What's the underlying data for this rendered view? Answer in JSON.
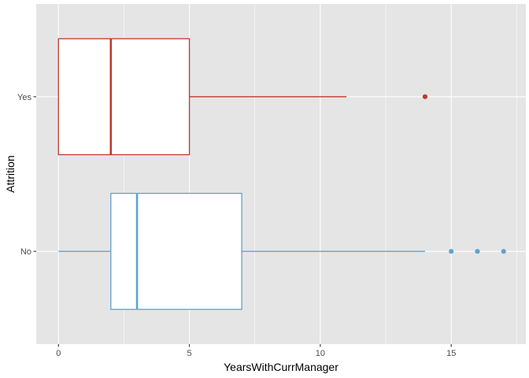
{
  "chart_data": {
    "type": "boxplot",
    "orientation": "horizontal",
    "title": "",
    "xlabel": "YearsWithCurrManager",
    "ylabel": "Attrition",
    "xlim": [
      -0.85,
      17.85
    ],
    "x_ticks": [
      0,
      5,
      10,
      15
    ],
    "x_tick_labels": [
      "0",
      "5",
      "10",
      "15"
    ],
    "categories": [
      "No",
      "Yes"
    ],
    "grid": true,
    "legend": "none",
    "panel_background": "#e5e5e5",
    "grid_color": "#ffffff",
    "groups": [
      {
        "category": "Yes",
        "color": "#c0392b",
        "whisker_low": 0,
        "q1": 0,
        "median": 2,
        "q3": 5,
        "whisker_high": 11,
        "outliers": [
          14
        ]
      },
      {
        "category": "No",
        "color": "#5ea3d0",
        "whisker_low": 0,
        "q1": 2,
        "median": 3,
        "q3": 7,
        "whisker_high": 14,
        "outliers": [
          15,
          16,
          17
        ]
      }
    ]
  }
}
